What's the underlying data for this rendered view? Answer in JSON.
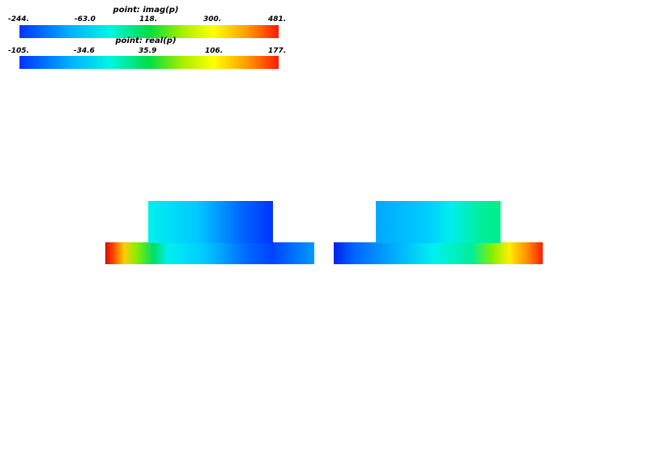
{
  "colorbars": [
    {
      "title": "point: imag(p)",
      "ticks": [
        "-244.",
        "-63.0",
        "118.",
        "300.",
        "481."
      ]
    },
    {
      "title": "point: real(p)",
      "ticks": [
        "-105.",
        "-34.6",
        "35.9",
        "106.",
        "177."
      ]
    }
  ],
  "colors": {
    "blue": "#0033ff",
    "light_blue": "#00a8ff",
    "cyan": "#00f0ff",
    "green": "#00dd44",
    "yellow": "#ffff00",
    "red": "#ff1a00"
  }
}
